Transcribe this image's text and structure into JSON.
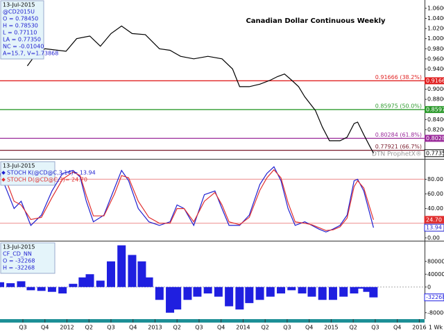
{
  "chart_data": [
    {
      "type": "line",
      "title": "Canadian Dollar Continuous Weekly",
      "watermark": "DTN ProphetX®",
      "info": [
        "13-Jul-2015",
        "@CD2015U",
        "O = 0.78450",
        "H = 0.78530",
        "L = 0.77110",
        "LA = 0.77350",
        "NC = -0.01040",
        "A=15.7, V=1.73868"
      ],
      "color": "#000000",
      "x": [
        2011.55,
        2011.63,
        2011.75,
        2011.99,
        2012.11,
        2012.26,
        2012.38,
        2012.5,
        2012.62,
        2012.74,
        2012.89,
        2013.05,
        2013.17,
        2013.29,
        2013.44,
        2013.6,
        2013.76,
        2013.88,
        2013.96,
        2014.07,
        2014.19,
        2014.31,
        2014.39,
        2014.47,
        2014.55,
        2014.63,
        2014.7,
        2014.82,
        2014.9,
        2014.98,
        2015.1,
        2015.18,
        2015.26,
        2015.3,
        2015.37,
        2015.43,
        2015.48
      ],
      "values": [
        0.946,
        0.965,
        0.98,
        0.975,
        1.0,
        1.005,
        0.985,
        1.01,
        1.025,
        1.01,
        1.008,
        0.98,
        0.977,
        0.965,
        0.96,
        0.965,
        0.96,
        0.94,
        0.905,
        0.905,
        0.91,
        0.918,
        0.925,
        0.93,
        0.918,
        0.905,
        0.885,
        0.858,
        0.825,
        0.798,
        0.798,
        0.805,
        0.832,
        0.835,
        0.81,
        0.79,
        0.7735
      ],
      "last": {
        "value": 0.7735,
        "label": "0.77350"
      },
      "levels": [
        {
          "value": 0.91666,
          "label": "0.91666 (38.2%)",
          "color": "#e02020",
          "boxed": true
        },
        {
          "value": 0.85975,
          "label": "0.85975 (50.0%)",
          "color": "#2e9b2e",
          "boxed": true
        },
        {
          "value": 0.80284,
          "label": "0.80284 (61.8%)",
          "color": "#9a2a9a",
          "boxed": true
        },
        {
          "value": 0.77921,
          "label": "0.77921 (66.7%)",
          "color": "#7a1c2c",
          "boxed": false
        }
      ],
      "xlim": [
        2011.24,
        2016.06
      ],
      "ylim": [
        0.7636,
        1.0764
      ],
      "yticks": [
        {
          "value": 1.06,
          "label": "1.06000"
        },
        {
          "value": 1.04,
          "label": "1.04000"
        },
        {
          "value": 1.02,
          "label": "1.02000"
        },
        {
          "value": 1.0,
          "label": "1.00000"
        },
        {
          "value": 0.98,
          "label": "0.98000"
        },
        {
          "value": 0.96,
          "label": "0.96000"
        },
        {
          "value": 0.94,
          "label": "0.94000"
        },
        {
          "value": 0.9,
          "label": "0.90000"
        },
        {
          "value": 0.88,
          "label": "0.88000"
        },
        {
          "value": 0.84,
          "label": "0.84000"
        },
        {
          "value": 0.82,
          "label": "0.82000"
        }
      ]
    },
    {
      "type": "line",
      "info": [
        "13-Jul-2015"
      ],
      "x": [
        2011.24,
        2011.32,
        2011.4,
        2011.48,
        2011.59,
        2011.71,
        2011.83,
        2011.95,
        2012.07,
        2012.15,
        2012.22,
        2012.3,
        2012.42,
        2012.54,
        2012.62,
        2012.7,
        2012.81,
        2012.93,
        2013.05,
        2013.17,
        2013.25,
        2013.33,
        2013.44,
        2013.56,
        2013.68,
        2013.76,
        2013.84,
        2013.96,
        2014.07,
        2014.19,
        2014.27,
        2014.35,
        2014.43,
        2014.51,
        2014.59,
        2014.7,
        2014.78,
        2014.86,
        2014.94,
        2015.02,
        2015.1,
        2015.18,
        2015.26,
        2015.3,
        2015.37,
        2015.48
      ],
      "series": [
        {
          "name": "STOCH K(@CD@C,3,14)= 13.94",
          "color": "#1f1fd0",
          "last_label": "13.94",
          "values": [
            88,
            64,
            40,
            50,
            17,
            31,
            64,
            88,
            92,
            83,
            50,
            22,
            31,
            68,
            92,
            78,
            40,
            22,
            17,
            22,
            45,
            40,
            17,
            59,
            64,
            40,
            17,
            17,
            31,
            73,
            88,
            97,
            78,
            40,
            17,
            22,
            17,
            12,
            8,
            12,
            17,
            31,
            78,
            80,
            64,
            13.94
          ]
        },
        {
          "name": "STOCH D(@CD@C,3)= 24.70",
          "color": "#e03030",
          "last_label": "24.70",
          "values": [
            85,
            75,
            50,
            45,
            25,
            28,
            55,
            80,
            90,
            85,
            58,
            30,
            30,
            60,
            85,
            82,
            50,
            28,
            20,
            20,
            40,
            40,
            22,
            50,
            62,
            45,
            22,
            18,
            28,
            65,
            82,
            93,
            82,
            48,
            22,
            20,
            18,
            14,
            10,
            11,
            15,
            27,
            70,
            78,
            68,
            24.7
          ]
        }
      ],
      "bands": [
        80,
        20
      ],
      "band_color": "#f0a0a0",
      "xlim": [
        2011.24,
        2016.06
      ],
      "ylim": [
        -2,
        105
      ],
      "yticks": [
        {
          "value": 80,
          "label": "80.00"
        },
        {
          "value": 60,
          "label": "60.00"
        },
        {
          "value": 40,
          "label": "40.00"
        },
        {
          "value": 0,
          "label": "0.00"
        }
      ]
    },
    {
      "type": "bar",
      "info": [
        "13-Jul-2015",
        "CF_CD_NN",
        "O = -32268",
        "H = -32268"
      ],
      "color": "#1f1fe0",
      "x": [
        2011.24,
        2011.36,
        2011.48,
        2011.59,
        2011.71,
        2011.83,
        2011.95,
        2012.07,
        2012.18,
        2012.26,
        2012.38,
        2012.5,
        2012.62,
        2012.74,
        2012.85,
        2012.93,
        2013.05,
        2013.17,
        2013.25,
        2013.37,
        2013.48,
        2013.6,
        2013.72,
        2013.84,
        2013.96,
        2014.07,
        2014.19,
        2014.31,
        2014.43,
        2014.55,
        2014.67,
        2014.78,
        2014.9,
        2015.02,
        2015.14,
        2015.26,
        2015.33,
        2015.41,
        2015.48
      ],
      "values": [
        15000,
        12000,
        18000,
        -10000,
        -12000,
        -15000,
        -20000,
        10000,
        30000,
        40000,
        20000,
        80000,
        130000,
        100000,
        80000,
        30000,
        -40000,
        -80000,
        -70000,
        -40000,
        -30000,
        -20000,
        -30000,
        -60000,
        -70000,
        -50000,
        -40000,
        -30000,
        -20000,
        -10000,
        -20000,
        -30000,
        -40000,
        -40000,
        -30000,
        -20000,
        -5000,
        -15000,
        -32268
      ],
      "zero_line": true,
      "xlim": [
        2011.24,
        2016.06
      ],
      "ylim": [
        -100000,
        140000
      ],
      "yticks": [
        80000,
        40000,
        0,
        -80000
      ],
      "xticks": [
        {
          "value": 2011.5,
          "label": "Q3"
        },
        {
          "value": 2011.75,
          "label": "Q4"
        },
        2012,
        {
          "value": 2012.25,
          "label": "Q2"
        },
        {
          "value": 2012.5,
          "label": "Q3"
        },
        {
          "value": 2012.75,
          "label": "Q4"
        },
        2013,
        {
          "value": 2013.25,
          "label": "Q2"
        },
        {
          "value": 2013.5,
          "label": "Q3"
        },
        {
          "value": 2013.75,
          "label": "Q4"
        },
        2014,
        {
          "value": 2014.25,
          "label": "Q2"
        },
        {
          "value": 2014.5,
          "label": "Q3"
        },
        {
          "value": 2014.75,
          "label": "Q4"
        },
        2015,
        {
          "value": 2015.25,
          "label": "Q2"
        },
        {
          "value": 2015.5,
          "label": "Q3"
        },
        {
          "value": 2015.75,
          "label": "Q4"
        },
        2016
      ],
      "x_unit": "1 Wk"
    }
  ]
}
